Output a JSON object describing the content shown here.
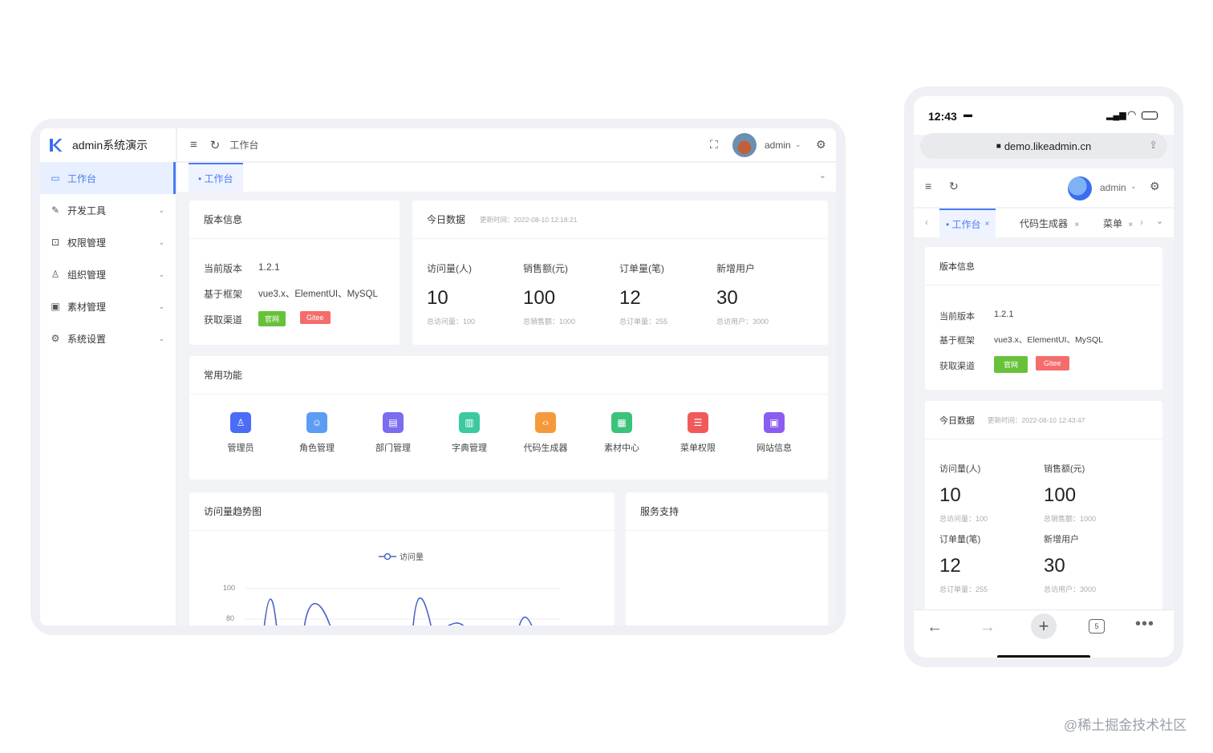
{
  "desktop": {
    "app_title": "admin系统演示",
    "sidebar": {
      "items": [
        {
          "label": "工作台",
          "icon": "monitor-icon",
          "active": true
        },
        {
          "label": "开发工具",
          "icon": "tool-icon"
        },
        {
          "label": "权限管理",
          "icon": "lock-icon"
        },
        {
          "label": "组织管理",
          "icon": "user-icon"
        },
        {
          "label": "素材管理",
          "icon": "image-icon"
        },
        {
          "label": "系统设置",
          "icon": "gear-icon"
        }
      ]
    },
    "topbar": {
      "breadcrumb": "工作台",
      "user_name": "admin"
    },
    "tabs": [
      {
        "label": "• 工作台",
        "active": true
      }
    ],
    "version_card": {
      "title": "版本信息",
      "rows": [
        {
          "label": "当前版本",
          "value": "1.2.1"
        },
        {
          "label": "基于框架",
          "value": "vue3.x、ElementUI、MySQL"
        },
        {
          "label": "获取渠道",
          "value": ""
        }
      ],
      "badge_official": "官网",
      "badge_gitee": "Gitee"
    },
    "today_card": {
      "title": "今日数据",
      "update_time": "更新时间：2022-08-10 12:18:21",
      "stats": [
        {
          "label": "访问量(人)",
          "value": "10",
          "sub": "总访问量：100"
        },
        {
          "label": "销售额(元)",
          "value": "100",
          "sub": "总销售额：1000"
        },
        {
          "label": "订单量(笔)",
          "value": "12",
          "sub": "总订单量：255"
        },
        {
          "label": "新增用户",
          "value": "30",
          "sub": "总访用户：3000"
        }
      ]
    },
    "functions_card": {
      "title": "常用功能",
      "items": [
        {
          "label": "管理员",
          "icon": "admin-icon",
          "color": "#4a6cf7"
        },
        {
          "label": "角色管理",
          "icon": "role-icon",
          "color": "#5b9cf5"
        },
        {
          "label": "部门管理",
          "icon": "department-icon",
          "color": "#7b6cf0"
        },
        {
          "label": "字典管理",
          "icon": "dictionary-icon",
          "color": "#3cc9a0"
        },
        {
          "label": "代码生成器",
          "icon": "code-icon",
          "color": "#f59a3c"
        },
        {
          "label": "素材中心",
          "icon": "material-icon",
          "color": "#3cc27a"
        },
        {
          "label": "菜单权限",
          "icon": "menu-icon",
          "color": "#f05a5a"
        },
        {
          "label": "网站信息",
          "icon": "website-icon",
          "color": "#8b5cf0"
        }
      ]
    },
    "trend_card": {
      "title": "访问量趋势图",
      "legend": "访问量",
      "y_ticks": [
        "100",
        "80"
      ]
    },
    "service_card": {
      "title": "服务支持"
    }
  },
  "mobile": {
    "status_time": "12:43",
    "url": "demo.likeadmin.cn",
    "user_name": "admin",
    "tabs": [
      {
        "label": "• 工作台",
        "active": true
      },
      {
        "label": "代码生成器"
      },
      {
        "label": "菜单"
      }
    ],
    "version_card": {
      "title": "版本信息",
      "rows": [
        {
          "label": "当前版本",
          "value": "1.2.1"
        },
        {
          "label": "基于框架",
          "value": "vue3.x、ElementUI、MySQL"
        },
        {
          "label": "获取渠道",
          "value": ""
        }
      ],
      "badge_official": "官网",
      "badge_gitee": "Gitee"
    },
    "today_card": {
      "title": "今日数据",
      "update_time": "更新时间：2022-08-10 12:43:47",
      "stats": [
        {
          "label": "访问量(人)",
          "value": "10",
          "sub": "总访问量：100"
        },
        {
          "label": "销售额(元)",
          "value": "100",
          "sub": "总销售额：1000"
        },
        {
          "label": "订单量(笔)",
          "value": "12",
          "sub": "总订单量：255"
        },
        {
          "label": "新增用户",
          "value": "30",
          "sub": "总访用户：3000"
        }
      ]
    },
    "tab_count": "5"
  },
  "watermark": "@稀土掘金技术社区",
  "colors": {
    "accent": "#4a7cf3",
    "green": "#67c23a",
    "red": "#f56c6c"
  }
}
